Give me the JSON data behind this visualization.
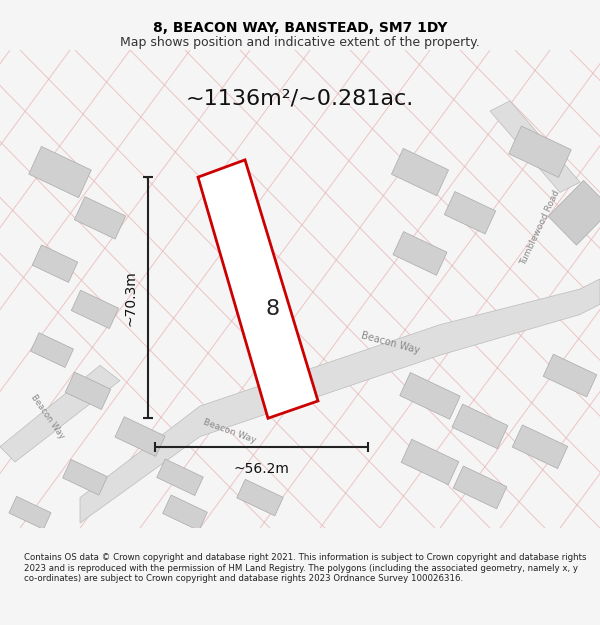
{
  "title": "8, BEACON WAY, BANSTEAD, SM7 1DY",
  "subtitle": "Map shows position and indicative extent of the property.",
  "area_label": "~1136m²/~0.281ac.",
  "number_label": "8",
  "width_label": "~56.2m",
  "height_label": "~70.3m",
  "footer_text": "Contains OS data © Crown copyright and database right 2021. This information is subject to Crown copyright and database rights 2023 and is reproduced with the permission of HM Land Registry. The polygons (including the associated geometry, namely x, y co-ordinates) are subject to Crown copyright and database rights 2023 Ordnance Survey 100026316.",
  "bg_color": "#f5f5f5",
  "map_bg": "#ffffff",
  "plot_outline_color": "#cc0000",
  "road_color": "#dedede",
  "building_color": "#d0d0d0",
  "street_line_color": "#e8b0b0",
  "dim_line_color": "#222222",
  "label_color": "#111111",
  "road_label_color": "#888888",
  "figsize": [
    6.0,
    6.25
  ],
  "dpi": 100,
  "ang": 25
}
